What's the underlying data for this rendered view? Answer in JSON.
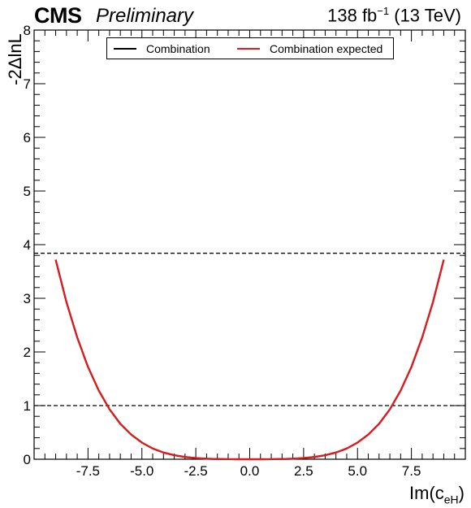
{
  "header": {
    "experiment": "CMS",
    "status": "Preliminary",
    "lumi_prefix": "138 fb",
    "lumi_exponent": "−1",
    "lumi_suffix": "(13 TeV)"
  },
  "colors": {
    "observed": "#000000",
    "expected": "#e3191b",
    "frame": "#000000"
  },
  "chart_data": {
    "type": "line",
    "xlabel_main": "Im(c",
    "xlabel_sub": "eH",
    "xlabel_close": ")",
    "ylabel": "-2ΔlnL",
    "xlim": [
      -10,
      10
    ],
    "ylim": [
      0,
      8
    ],
    "xticks": [
      -7.5,
      -5.0,
      -2.5,
      0.0,
      2.5,
      5.0,
      7.5
    ],
    "xtick_labels": [
      "-7.5",
      "-5.0",
      "-2.5",
      "0.0",
      "2.5",
      "5.0",
      "7.5"
    ],
    "yticks": [
      0,
      1,
      2,
      3,
      4,
      5,
      6,
      7,
      8
    ],
    "ytick_labels": [
      "0",
      "1",
      "2",
      "3",
      "4",
      "5",
      "6",
      "7",
      "8"
    ],
    "reference_lines": [
      1.0,
      3.84
    ],
    "legend": {
      "position": "top-center",
      "entries": [
        "Combination",
        "Combination expected"
      ]
    },
    "x": [
      -9.0,
      -8.5,
      -8.0,
      -7.5,
      -7.0,
      -6.5,
      -6.0,
      -5.5,
      -5.0,
      -4.5,
      -4.0,
      -3.5,
      -3.0,
      -2.5,
      -2.0,
      -1.5,
      -1.0,
      -0.5,
      0.0,
      0.5,
      1.0,
      1.5,
      2.0,
      2.5,
      3.0,
      3.5,
      4.0,
      4.5,
      5.0,
      5.5,
      6.0,
      6.5,
      7.0,
      7.5,
      8.0,
      8.5,
      9.0
    ],
    "series": [
      {
        "name": "Combination",
        "values": [
          3.72,
          2.93,
          2.27,
          1.72,
          1.28,
          0.93,
          0.66,
          0.46,
          0.31,
          0.2,
          0.125,
          0.075,
          0.042,
          0.022,
          0.01,
          0.004,
          0.001,
          0.0,
          0.0,
          0.0,
          0.001,
          0.004,
          0.01,
          0.022,
          0.042,
          0.075,
          0.125,
          0.2,
          0.31,
          0.46,
          0.66,
          0.93,
          1.28,
          1.72,
          2.27,
          2.93,
          3.72
        ]
      },
      {
        "name": "Combination expected",
        "values": [
          3.72,
          2.93,
          2.27,
          1.72,
          1.28,
          0.93,
          0.66,
          0.46,
          0.31,
          0.2,
          0.125,
          0.075,
          0.042,
          0.022,
          0.01,
          0.004,
          0.001,
          0.0,
          0.0,
          0.0,
          0.001,
          0.004,
          0.01,
          0.022,
          0.042,
          0.075,
          0.125,
          0.2,
          0.31,
          0.46,
          0.66,
          0.93,
          1.28,
          1.72,
          2.27,
          2.93,
          3.72
        ]
      }
    ]
  }
}
